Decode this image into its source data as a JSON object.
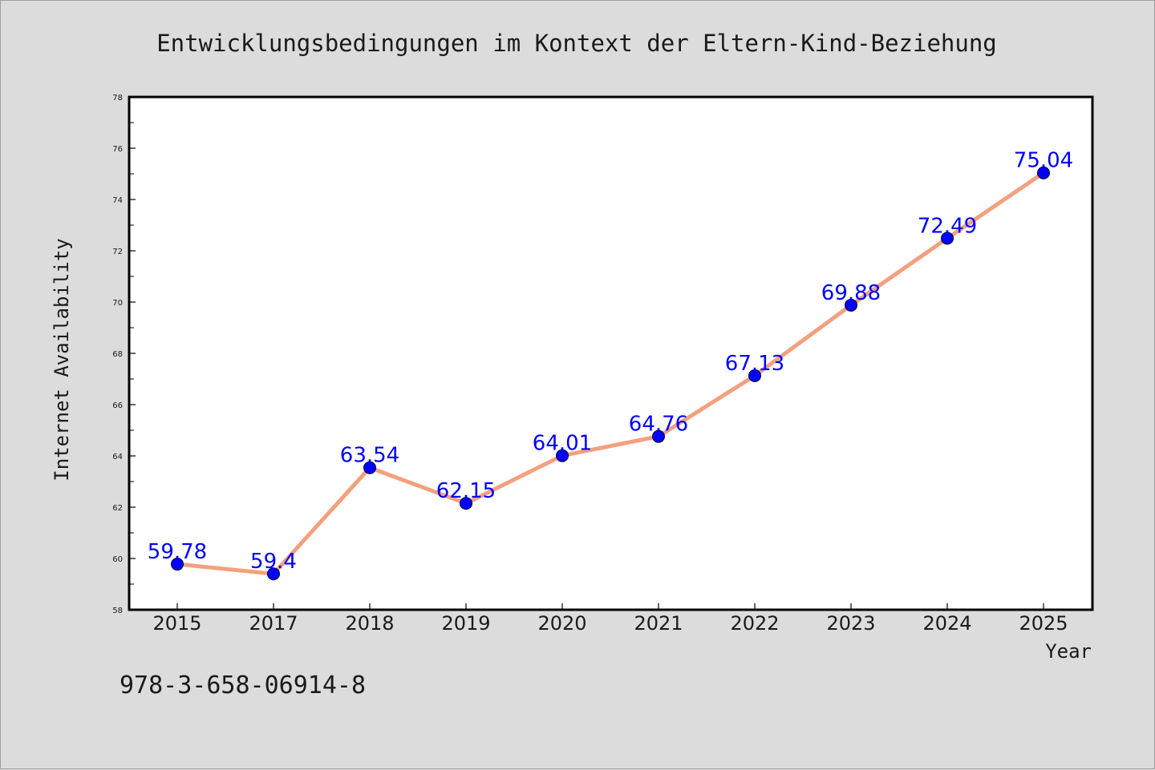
{
  "chart_data": {
    "type": "line",
    "title": "Entwicklungsbedingungen im Kontext der Eltern-Kind-Beziehung",
    "xlabel": "Year",
    "ylabel": "Internet Availability",
    "categories": [
      "2015",
      "2017",
      "2018",
      "2019",
      "2020",
      "2021",
      "2022",
      "2023",
      "2024",
      "2025"
    ],
    "series": [
      {
        "values": [
          59.78,
          59.4,
          63.54,
          62.15,
          64.01,
          64.76,
          67.13,
          69.88,
          72.49,
          75.04
        ],
        "line_color": "#f4a07e",
        "marker_color": "#0000ff",
        "label_color": "#0000ff"
      }
    ],
    "ylim": [
      58,
      78
    ],
    "yticks": [
      58,
      60,
      62,
      64,
      66,
      68,
      70,
      72,
      74,
      76,
      78
    ],
    "grid": false,
    "legend": "none",
    "show_data_labels": true
  },
  "footer": {
    "isbn": "978-3-658-06914-8"
  },
  "colors": {
    "background": "#dcdcdc",
    "plot_background": "#ffffff",
    "axes": "#000000"
  }
}
